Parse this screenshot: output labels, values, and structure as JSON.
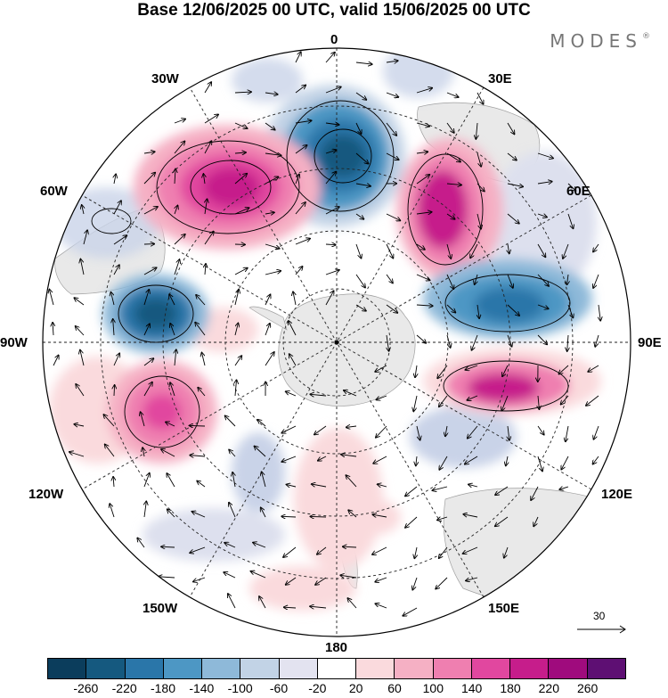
{
  "title": "Base 12/06/2025 00 UTC, valid 15/06/2025 00 UTC",
  "brand": "MODES",
  "brand_mark": "®",
  "map": {
    "projection": "south polar stereographic",
    "longitude_labels": {
      "n": "0",
      "ne": "30E",
      "e1": "60E",
      "e2": "90E",
      "e3": "120E",
      "e4": "150E",
      "s": "180",
      "w4": "150W",
      "w3": "120W",
      "w2": "90W",
      "w1": "60W",
      "nw": "30W"
    },
    "anomalies": [
      {
        "name": "negative-center-0",
        "value": -240,
        "color": "#2368a0"
      },
      {
        "name": "positive-center-30w",
        "value": 240,
        "color": "#bf1f88"
      },
      {
        "name": "positive-center-45e",
        "value": 240,
        "color": "#bf1f88"
      },
      {
        "name": "negative-center-75w",
        "value": -200,
        "color": "#3a88bc"
      },
      {
        "name": "negative-center-75e",
        "value": -200,
        "color": "#3a88bc"
      },
      {
        "name": "positive-center-100e",
        "value": 180,
        "color": "#df4aa4"
      },
      {
        "name": "positive-center-105w",
        "value": 160,
        "color": "#df4aa4"
      }
    ]
  },
  "legend": {
    "colors": [
      "#0b3d5c",
      "#15597f",
      "#2a76a9",
      "#4d97c4",
      "#8eb9d9",
      "#c2d3e6",
      "#e3e3f0",
      "#ffffff",
      "#fadadd",
      "#f5b0c4",
      "#ef7fb0",
      "#e1479f",
      "#c61d8b",
      "#9f0b7d",
      "#5e0f73"
    ],
    "tick_labels": [
      "-260",
      "-220",
      "-180",
      "-140",
      "-100",
      "-60",
      "-20",
      "20",
      "60",
      "100",
      "140",
      "180",
      "220",
      "260"
    ]
  },
  "reference_vector": {
    "value": "30"
  }
}
